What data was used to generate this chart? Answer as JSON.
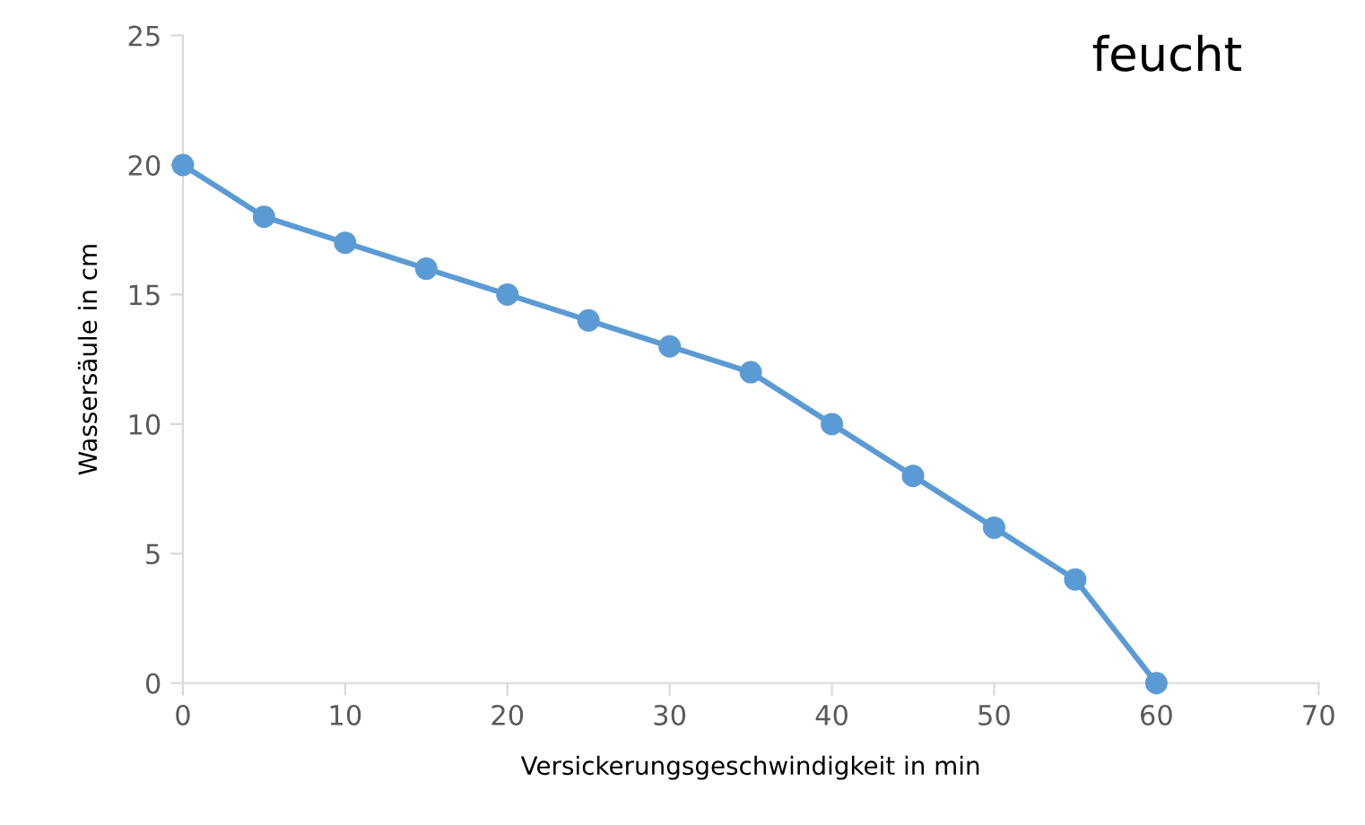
{
  "chart_data": {
    "type": "line",
    "title": "feucht",
    "xlabel": "Versickerungsgeschwindigkeit in min",
    "ylabel": "Wassersäule in cm",
    "x": [
      0,
      5,
      10,
      15,
      20,
      25,
      30,
      35,
      40,
      45,
      50,
      55,
      60
    ],
    "series": [
      {
        "color": "#5b9bd5",
        "values": [
          20,
          18,
          17,
          16,
          15,
          14,
          13,
          12,
          10,
          8,
          6,
          4,
          0
        ]
      }
    ],
    "xlim": [
      0,
      70
    ],
    "xticks": [
      0,
      10,
      20,
      30,
      40,
      50,
      60,
      70
    ],
    "ylim": [
      0,
      25
    ],
    "yticks": [
      0,
      5,
      10,
      15,
      20,
      25
    ],
    "grid": false,
    "legend": false,
    "marker": "circle",
    "line_style": "solid"
  }
}
